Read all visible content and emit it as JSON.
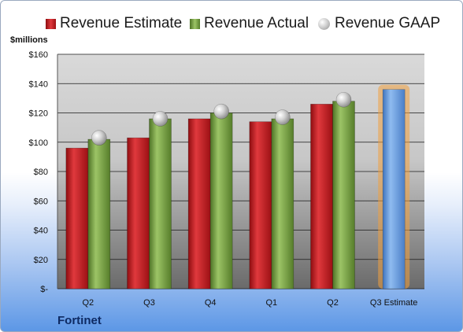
{
  "chart_data": {
    "type": "bar",
    "title": "",
    "xlabel": "",
    "ylabel": "$millions",
    "company": "Fortinet",
    "categories": [
      "Q2",
      "Q3",
      "Q4",
      "Q1",
      "Q2",
      "Q3 Estimate"
    ],
    "ylim": [
      0,
      160
    ],
    "yticks": [
      0,
      20,
      40,
      60,
      80,
      100,
      120,
      140,
      160
    ],
    "ytick_labels": [
      "$-",
      "$20",
      "$40",
      "$60",
      "$80",
      "$100",
      "$120",
      "$140",
      "$160"
    ],
    "grid": true,
    "legend_position": "top",
    "series": [
      {
        "name": "Revenue Estimate",
        "kind": "bar",
        "color": "#c0161c",
        "values": [
          96,
          103,
          116,
          114,
          126,
          null
        ]
      },
      {
        "name": "Revenue Actual",
        "kind": "bar",
        "color": "#6f9a3a",
        "values": [
          102,
          116,
          120,
          116,
          128,
          null
        ]
      },
      {
        "name": "Revenue GAAP",
        "kind": "marker",
        "color": "#bdbdbd",
        "values": [
          103,
          116,
          121,
          117,
          129,
          null
        ]
      }
    ],
    "forecast": {
      "category": "Q3 Estimate",
      "value": 136,
      "color": "#6a9fdc",
      "glow_color": "#f0a040"
    }
  }
}
